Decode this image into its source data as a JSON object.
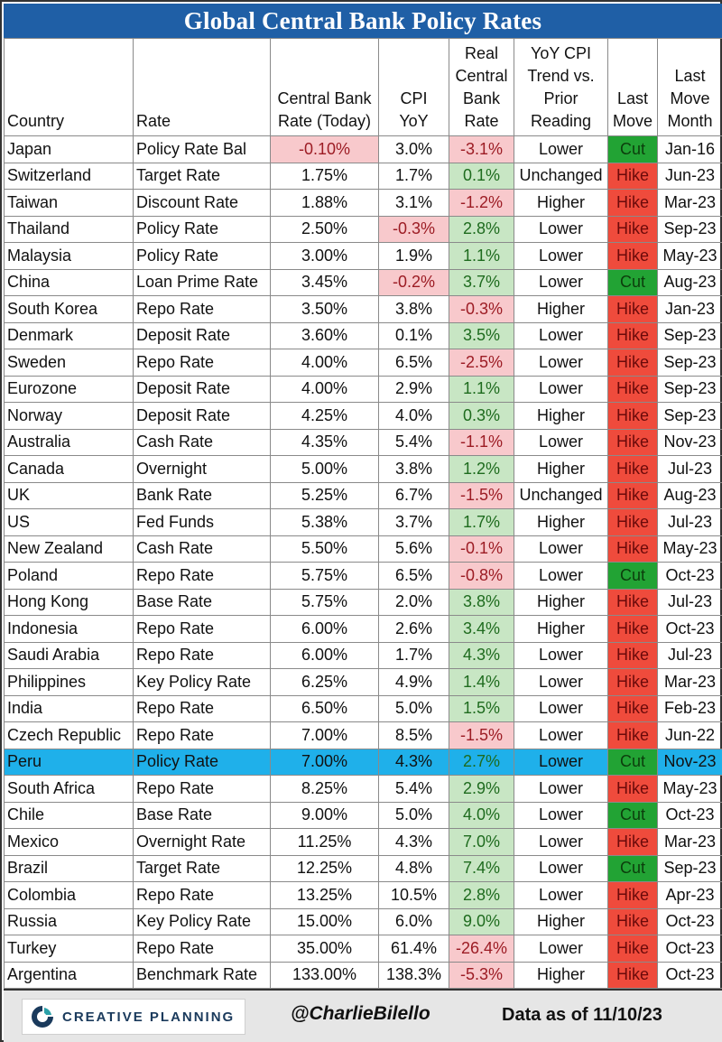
{
  "title": "Global Central Bank Policy Rates",
  "footer": {
    "brand": "CREATIVE PLANNING",
    "handle": "@CharlieBilello",
    "as_of": "Data as of 11/10/23"
  },
  "colors": {
    "title_bg": "#1f5fa6",
    "negative_bg": "#f8c9cc",
    "positive_bg": "#c8e6c4",
    "hike": "#ef4b3c",
    "cut": "#22a334",
    "highlight_row": "#1fb0ea"
  },
  "chart_data": {
    "type": "table",
    "title": "Global Central Bank Policy Rates",
    "highlighted_country": "Peru",
    "columns": [
      "Country",
      "Rate",
      "Central Bank Rate (Today)",
      "CPI YoY",
      "Real Central Bank Rate",
      "YoY CPI Trend vs. Prior Reading",
      "Last Move",
      "Last Move Month"
    ],
    "header_lines": [
      [
        "Country"
      ],
      [
        "Rate"
      ],
      [
        "Central Bank",
        "Rate (Today)"
      ],
      [
        "CPI",
        "YoY"
      ],
      [
        "Real",
        "Central",
        "Bank",
        "Rate"
      ],
      [
        "YoY CPI",
        "Trend vs.",
        "Prior",
        "Reading"
      ],
      [
        "Last",
        "Move"
      ],
      [
        "Last",
        "Move",
        "Month"
      ]
    ],
    "rows": [
      [
        "Japan",
        "Policy Rate Bal",
        "-0.10%",
        "3.0%",
        "-3.1%",
        "Lower",
        "Cut",
        "Jan-16"
      ],
      [
        "Switzerland",
        "Target Rate",
        "1.75%",
        "1.7%",
        "0.1%",
        "Unchanged",
        "Hike",
        "Jun-23"
      ],
      [
        "Taiwan",
        "Discount Rate",
        "1.88%",
        "3.1%",
        "-1.2%",
        "Higher",
        "Hike",
        "Mar-23"
      ],
      [
        "Thailand",
        "Policy Rate",
        "2.50%",
        "-0.3%",
        "2.8%",
        "Lower",
        "Hike",
        "Sep-23"
      ],
      [
        "Malaysia",
        "Policy Rate",
        "3.00%",
        "1.9%",
        "1.1%",
        "Lower",
        "Hike",
        "May-23"
      ],
      [
        "China",
        "Loan Prime Rate",
        "3.45%",
        "-0.2%",
        "3.7%",
        "Lower",
        "Cut",
        "Aug-23"
      ],
      [
        "South Korea",
        "Repo Rate",
        "3.50%",
        "3.8%",
        "-0.3%",
        "Higher",
        "Hike",
        "Jan-23"
      ],
      [
        "Denmark",
        "Deposit Rate",
        "3.60%",
        "0.1%",
        "3.5%",
        "Lower",
        "Hike",
        "Sep-23"
      ],
      [
        "Sweden",
        "Repo Rate",
        "4.00%",
        "6.5%",
        "-2.5%",
        "Lower",
        "Hike",
        "Sep-23"
      ],
      [
        "Eurozone",
        "Deposit Rate",
        "4.00%",
        "2.9%",
        "1.1%",
        "Lower",
        "Hike",
        "Sep-23"
      ],
      [
        "Norway",
        "Deposit Rate",
        "4.25%",
        "4.0%",
        "0.3%",
        "Higher",
        "Hike",
        "Sep-23"
      ],
      [
        "Australia",
        "Cash Rate",
        "4.35%",
        "5.4%",
        "-1.1%",
        "Lower",
        "Hike",
        "Nov-23"
      ],
      [
        "Canada",
        "Overnight",
        "5.00%",
        "3.8%",
        "1.2%",
        "Higher",
        "Hike",
        "Jul-23"
      ],
      [
        "UK",
        "Bank Rate",
        "5.25%",
        "6.7%",
        "-1.5%",
        "Unchanged",
        "Hike",
        "Aug-23"
      ],
      [
        "US",
        "Fed Funds",
        "5.38%",
        "3.7%",
        "1.7%",
        "Higher",
        "Hike",
        "Jul-23"
      ],
      [
        "New Zealand",
        "Cash Rate",
        "5.50%",
        "5.6%",
        "-0.1%",
        "Lower",
        "Hike",
        "May-23"
      ],
      [
        "Poland",
        "Repo Rate",
        "5.75%",
        "6.5%",
        "-0.8%",
        "Lower",
        "Cut",
        "Oct-23"
      ],
      [
        "Hong Kong",
        "Base Rate",
        "5.75%",
        "2.0%",
        "3.8%",
        "Higher",
        "Hike",
        "Jul-23"
      ],
      [
        "Indonesia",
        "Repo Rate",
        "6.00%",
        "2.6%",
        "3.4%",
        "Higher",
        "Hike",
        "Oct-23"
      ],
      [
        "Saudi Arabia",
        "Repo Rate",
        "6.00%",
        "1.7%",
        "4.3%",
        "Lower",
        "Hike",
        "Jul-23"
      ],
      [
        "Philippines",
        "Key Policy Rate",
        "6.25%",
        "4.9%",
        "1.4%",
        "Lower",
        "Hike",
        "Mar-23"
      ],
      [
        "India",
        "Repo Rate",
        "6.50%",
        "5.0%",
        "1.5%",
        "Lower",
        "Hike",
        "Feb-23"
      ],
      [
        "Czech Republic",
        "Repo Rate",
        "7.00%",
        "8.5%",
        "-1.5%",
        "Lower",
        "Hike",
        "Jun-22"
      ],
      [
        "Peru",
        "Policy Rate",
        "7.00%",
        "4.3%",
        "2.7%",
        "Lower",
        "Cut",
        "Nov-23"
      ],
      [
        "South Africa",
        "Repo Rate",
        "8.25%",
        "5.4%",
        "2.9%",
        "Lower",
        "Hike",
        "May-23"
      ],
      [
        "Chile",
        "Base Rate",
        "9.00%",
        "5.0%",
        "4.0%",
        "Lower",
        "Cut",
        "Oct-23"
      ],
      [
        "Mexico",
        "Overnight Rate",
        "11.25%",
        "4.3%",
        "7.0%",
        "Lower",
        "Hike",
        "Mar-23"
      ],
      [
        "Brazil",
        "Target Rate",
        "12.25%",
        "4.8%",
        "7.4%",
        "Lower",
        "Cut",
        "Sep-23"
      ],
      [
        "Colombia",
        "Repo Rate",
        "13.25%",
        "10.5%",
        "2.8%",
        "Lower",
        "Hike",
        "Apr-23"
      ],
      [
        "Russia",
        "Key Policy Rate",
        "15.00%",
        "6.0%",
        "9.0%",
        "Higher",
        "Hike",
        "Oct-23"
      ],
      [
        "Turkey",
        "Repo Rate",
        "35.00%",
        "61.4%",
        "-26.4%",
        "Lower",
        "Hike",
        "Oct-23"
      ],
      [
        "Argentina",
        "Benchmark Rate",
        "133.00%",
        "138.3%",
        "-5.3%",
        "Higher",
        "Hike",
        "Oct-23"
      ]
    ]
  }
}
